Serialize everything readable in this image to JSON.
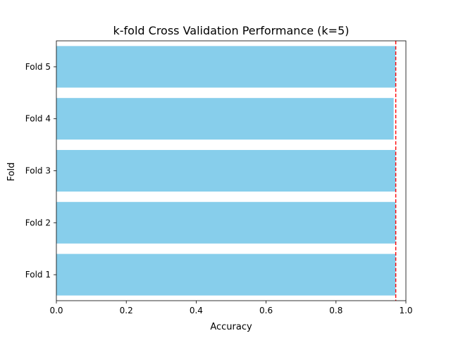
{
  "chart_data": {
    "type": "bar",
    "orientation": "horizontal",
    "title": "k-fold Cross Validation Performance (k=5)",
    "xlabel": "Accuracy",
    "ylabel": "Fold",
    "categories": [
      "Fold 1",
      "Fold 2",
      "Fold 3",
      "Fold 4",
      "Fold 5"
    ],
    "values": [
      0.97,
      0.97,
      0.97,
      0.965,
      0.97
    ],
    "xlim": [
      0.0,
      1.0
    ],
    "xticks": [
      "0.0",
      "0.2",
      "0.4",
      "0.6",
      "0.8",
      "1.0"
    ],
    "reference_line": {
      "value": 0.971,
      "color": "#ff0000",
      "style": "dashed"
    },
    "bar_color": "#87ceeb",
    "grid": false
  }
}
